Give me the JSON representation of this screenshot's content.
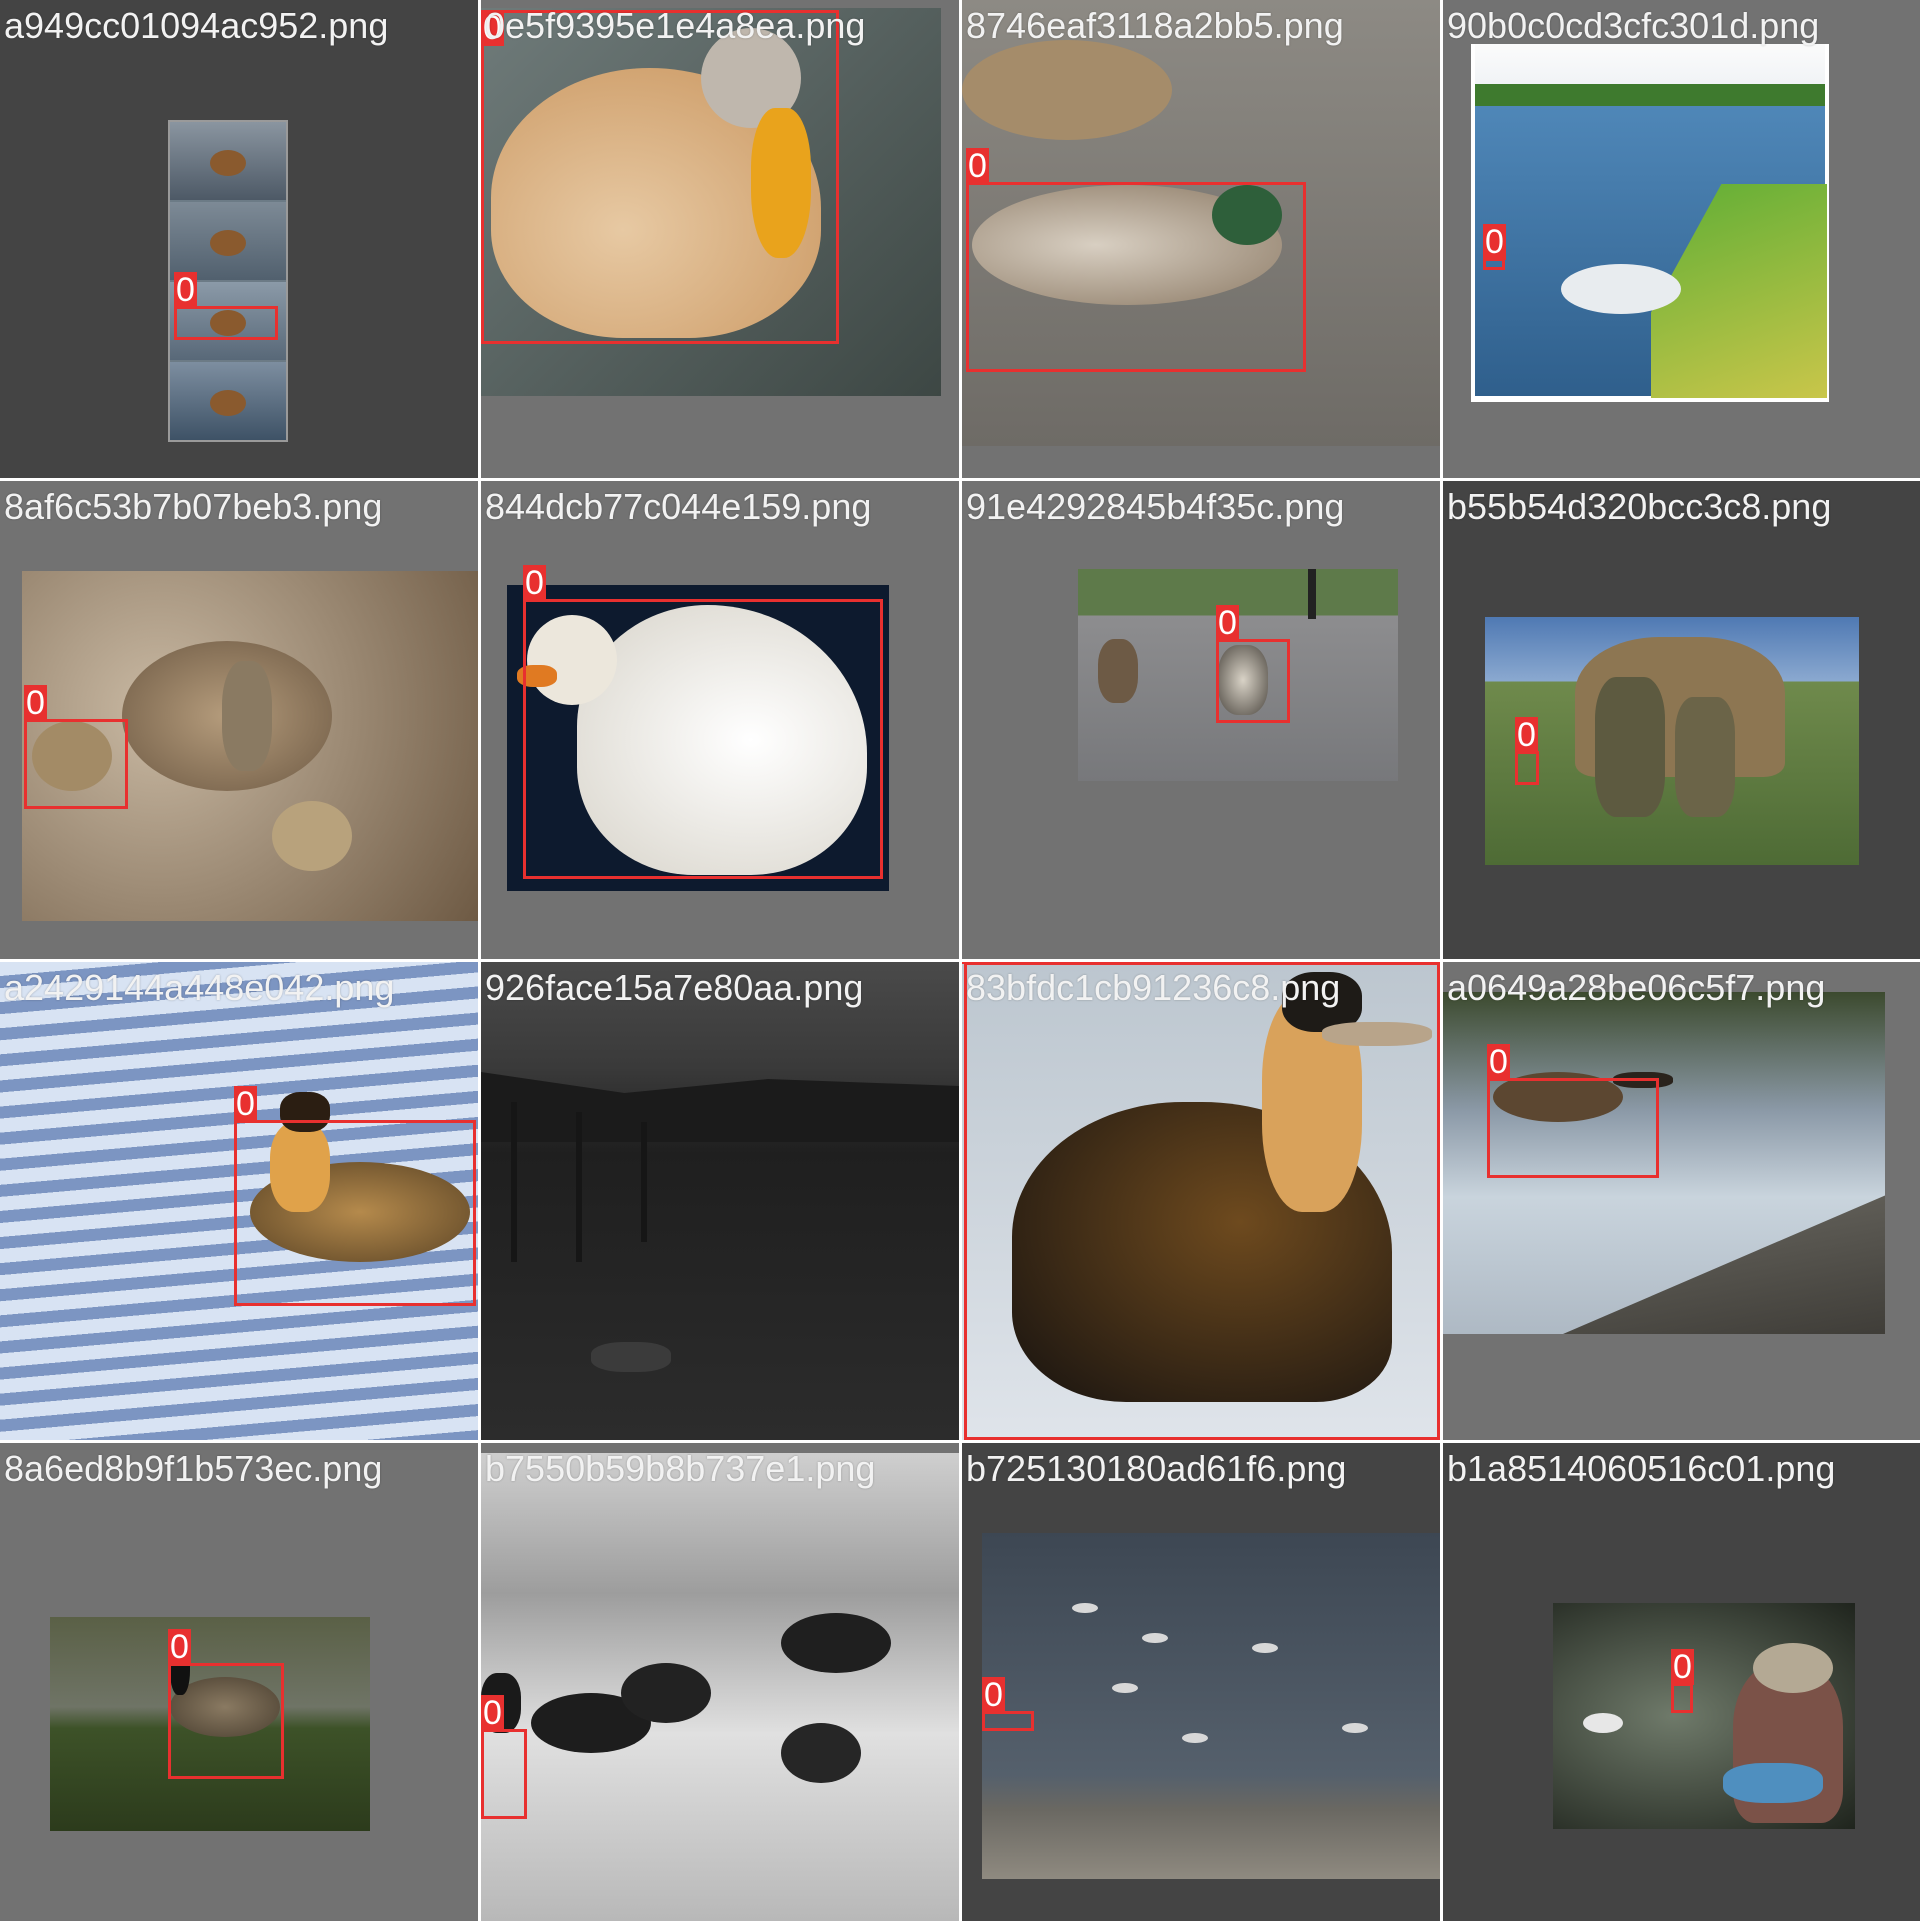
{
  "grid": {
    "cells": [
      {
        "filename": "a949cc01094ac952.png",
        "label": "0"
      },
      {
        "filename": "0e5f9395e1e4a8ea.png",
        "label": "0"
      },
      {
        "filename": "8746eaf3118a2bb5.png",
        "label": "0"
      },
      {
        "filename": "90b0c0cd3cfc301d.png",
        "label": "0"
      },
      {
        "filename": "8af6c53b7b07beb3.png",
        "label": "0"
      },
      {
        "filename": "844dcb77c044e159.png",
        "label": "0"
      },
      {
        "filename": "91e4292845b4f35c.png",
        "label": "0"
      },
      {
        "filename": "b55b54d320bcc3c8.png",
        "label": "0"
      },
      {
        "filename": "a2429144a448e042.png",
        "label": "0"
      },
      {
        "filename": "926face15a7e80aa.png"
      },
      {
        "filename": "83bfdc1cb91236c8.png",
        "label": "0"
      },
      {
        "filename": "a0649a28be06c5f7.png",
        "label": "0"
      },
      {
        "filename": "8a6ed8b9f1b573ec.png",
        "label": "0"
      },
      {
        "filename": "b7550b59b8b737e1.png",
        "label": "0"
      },
      {
        "filename": "b725130180ad61f6.png",
        "label": "0"
      },
      {
        "filename": "b1a8514060516c01.png",
        "label": "0"
      }
    ]
  },
  "colors": {
    "box": "#e8302f",
    "tile_bg_light": "#727272",
    "tile_bg_dark": "#444444",
    "filename_text": "#f2f2f2"
  }
}
